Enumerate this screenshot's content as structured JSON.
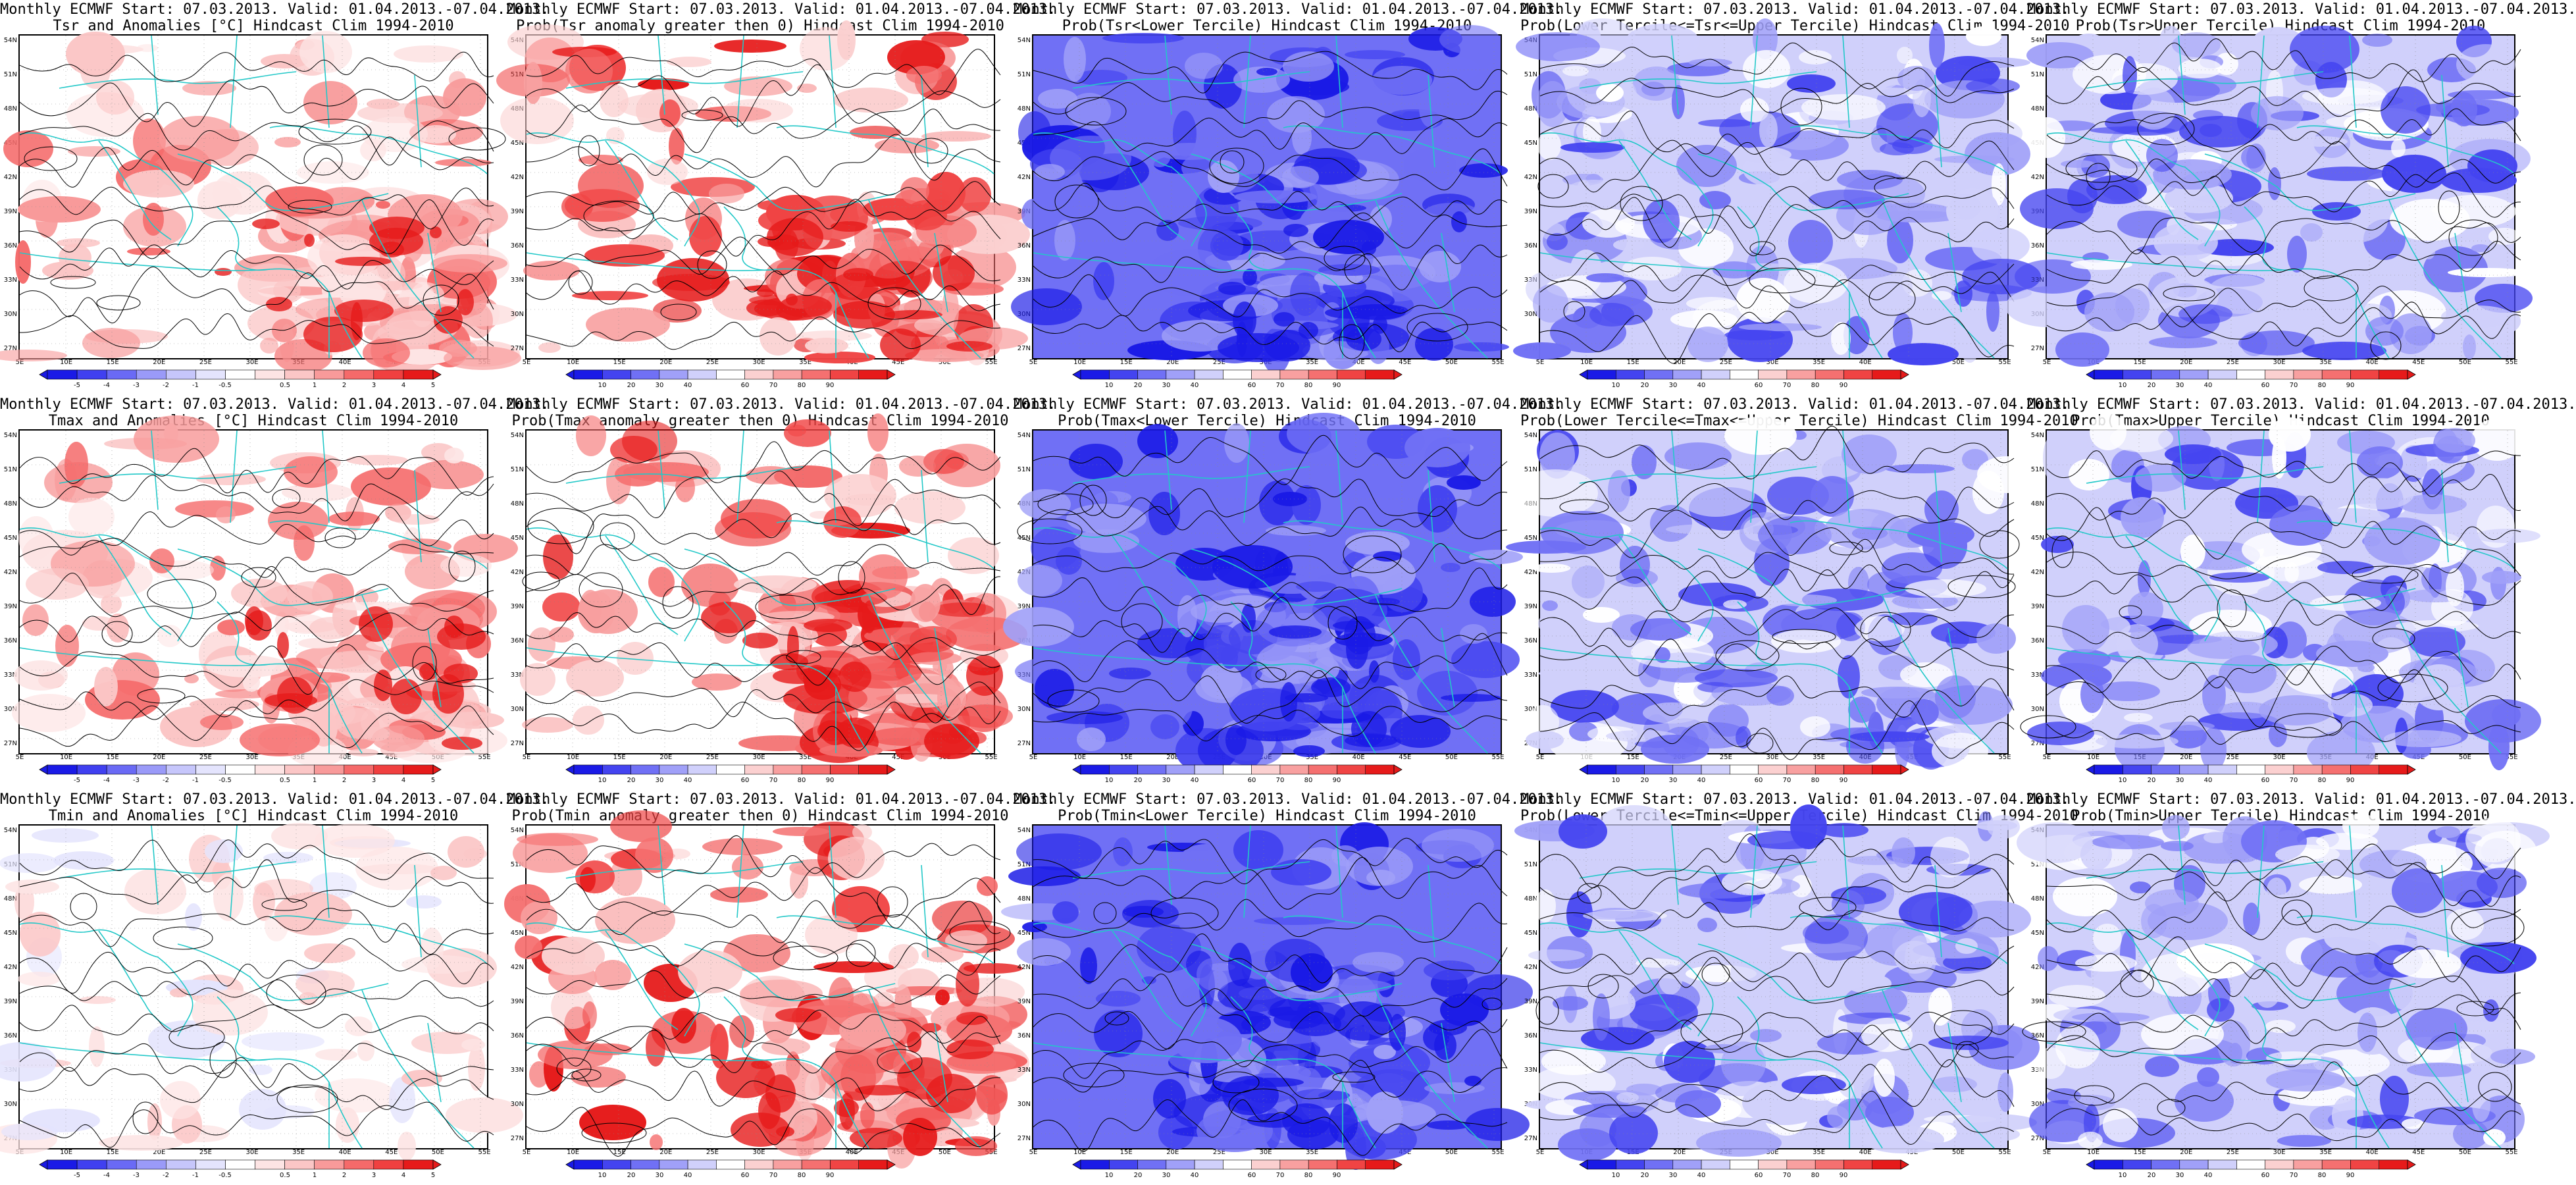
{
  "map": {
    "y_ticks": [
      "54N",
      "51N",
      "48N",
      "45N",
      "42N",
      "39N",
      "36N",
      "33N",
      "30N",
      "27N"
    ],
    "x_ticks": [
      "5E",
      "10E",
      "15E",
      "20E",
      "25E",
      "30E",
      "35E",
      "40E",
      "45E",
      "50E",
      "55E"
    ],
    "colors": {
      "coast": "#22c8c8",
      "contour": "#000000",
      "anom_scale": [
        "#1a1ae6",
        "#4040f0",
        "#6a6af5",
        "#9a9af8",
        "#c6c6fb",
        "#e4e4fd",
        "#ffffff",
        "#fde4e4",
        "#fbc6c6",
        "#f89a9a",
        "#f56a6a",
        "#f04040",
        "#e61a1a"
      ],
      "prob_scale": [
        "#1a1ae6",
        "#4444f0",
        "#7070f5",
        "#a0a0f8",
        "#d0d0fb",
        "#ffffff",
        "#fbd0d0",
        "#f8a0a0",
        "#f57070",
        "#f04444",
        "#e61a1a"
      ]
    }
  },
  "colorbars": {
    "anom_labels": [
      "-5",
      "-4",
      "-3",
      "-2",
      "-1",
      "-0.5",
      "0.5",
      "1",
      "2",
      "3",
      "4",
      "5"
    ],
    "prob_labels": [
      "10",
      "20",
      "30",
      "40",
      "60",
      "70",
      "80",
      "90"
    ]
  },
  "rows": [
    {
      "panels": [
        {
          "line1": "Monthly ECMWF Start: 07.03.2013. Valid: 01.04.2013.-07.04.2013.",
          "line2": "Tsr and Anomalies [°C] Hindcast Clim 1994-2010",
          "kind": "anom",
          "tone": "warm"
        },
        {
          "line1": "Monthly ECMWF Start: 07.03.2013. Valid: 01.04.2013.-07.04.2013.",
          "line2": "Prob(Tsr anomaly greater then 0) Hindcast Clim 1994-2010",
          "kind": "prob",
          "tone": "warm"
        },
        {
          "line1": "Monthly ECMWF Start: 07.03.2013. Valid: 01.04.2013.-07.04.2013.",
          "line2": "Prob(Tsr<Lower Tercile) Hindcast Clim 1994-2010",
          "kind": "prob",
          "tone": "cold-strong"
        },
        {
          "line1": "Monthly ECMWF Start: 07.03.2013. Valid: 01.04.2013.-07.04.2013.",
          "line2": "Prob(Lower Tercile<=Tsr<=Upper Tercile) Hindcast Clim 1994-2010",
          "kind": "prob",
          "tone": "cold-mid"
        },
        {
          "line1": "Monthly ECMWF Start: 07.03.2013. Valid: 01.04.2013.-07.04.2013.",
          "line2": "Prob(Tsr>Upper Tercile) Hindcast Clim 1994-2010",
          "kind": "prob",
          "tone": "cold-mid"
        }
      ]
    },
    {
      "panels": [
        {
          "line1": "Monthly ECMWF Start: 07.03.2013. Valid: 01.04.2013.-07.04.2013.",
          "line2": "Tmax and Anomalies [°C] Hindcast Clim 1994-2010",
          "kind": "anom",
          "tone": "warm"
        },
        {
          "line1": "Monthly ECMWF Start: 07.03.2013. Valid: 01.04.2013.-07.04.2013.",
          "line2": "Prob(Tmax anomaly greater then 0) Hindcast Clim 1994-2010",
          "kind": "prob",
          "tone": "warm"
        },
        {
          "line1": "Monthly ECMWF Start: 07.03.2013. Valid: 01.04.2013.-07.04.2013.",
          "line2": "Prob(Tmax<Lower Tercile) Hindcast Clim 1994-2010",
          "kind": "prob",
          "tone": "cold-strong"
        },
        {
          "line1": "Monthly ECMWF Start: 07.03.2013. Valid: 01.04.2013.-07.04.2013.",
          "line2": "Prob(Lower Tercile<=Tmax<=Upper Tercile) Hindcast Clim 1994-2010",
          "kind": "prob",
          "tone": "cold-mid"
        },
        {
          "line1": "Monthly ECMWF Start: 07.03.2013. Valid: 01.04.2013.-07.04.2013.",
          "line2": "Prob(Tmax>Upper Tercile) Hindcast Clim 1994-2010",
          "kind": "prob",
          "tone": "cold-mid"
        }
      ]
    },
    {
      "panels": [
        {
          "line1": "Monthly ECMWF Start: 07.03.2013. Valid: 01.04.2013.-07.04.2013.",
          "line2": "Tmin and Anomalies [°C] Hindcast Clim 1994-2010",
          "kind": "anom",
          "tone": "warm-light"
        },
        {
          "line1": "Monthly ECMWF Start: 07.03.2013. Valid: 01.04.2013.-07.04.2013.",
          "line2": "Prob(Tmin anomaly greater then 0) Hindcast Clim 1994-2010",
          "kind": "prob",
          "tone": "warm"
        },
        {
          "line1": "Monthly ECMWF Start: 07.03.2013. Valid: 01.04.2013.-07.04.2013.",
          "line2": "Prob(Tmin<Lower Tercile) Hindcast Clim 1994-2010",
          "kind": "prob",
          "tone": "cold-strong"
        },
        {
          "line1": "Monthly ECMWF Start: 07.03.2013. Valid: 01.04.2013.-07.04.2013.",
          "line2": "Prob(Lower Tercile<=Tmin<=Upper Tercile) Hindcast Clim 1994-2010",
          "kind": "prob",
          "tone": "cold-mid"
        },
        {
          "line1": "Monthly ECMWF Start: 07.03.2013. Valid: 01.04.2013.-07.04.2013.",
          "line2": "Prob(Tmin>Upper Tercile) Hindcast Clim 1994-2010",
          "kind": "prob",
          "tone": "cold-mid"
        }
      ]
    }
  ]
}
